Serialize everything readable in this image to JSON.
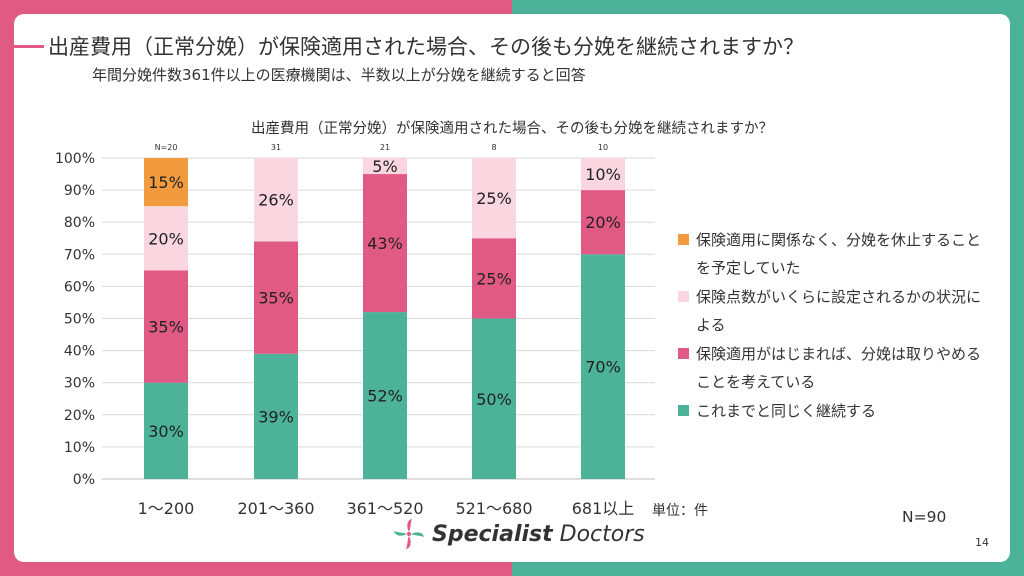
{
  "header": {
    "title": "出産費用（正常分娩）が保険適用された場合、その後も分娩を継続されますか？",
    "subtitle": "年間分娩件数361件以上の医療機関は、半数以上が分娩を継続すると回答"
  },
  "colors": {
    "accent_pink": "#e05a84",
    "accent_green": "#4cb399",
    "continue": "#4db398",
    "quit_if_applied": "#e05a84",
    "depends": "#f9d6e0",
    "quit_regardless": "#f19a3e"
  },
  "chart_data": {
    "type": "bar",
    "stacked": true,
    "title": "出産費用（正常分娩）が保険適用された場合、その後も分娩を継続されますか？",
    "categories": [
      "1～200",
      "201～360",
      "361～520",
      "521～680",
      "681以上"
    ],
    "n_labels": [
      "N=20",
      "31",
      "21",
      "8",
      "10"
    ],
    "y_ticks": [
      "0%",
      "10%",
      "20%",
      "30%",
      "40%",
      "50%",
      "60%",
      "70%",
      "80%",
      "90%",
      "100%"
    ],
    "ylim": [
      0,
      100
    ],
    "grid": true,
    "legend_position": "right",
    "series": [
      {
        "name": "これまでと同じく継続する",
        "color": "#4db398",
        "values": [
          30,
          39,
          52,
          50,
          70
        ]
      },
      {
        "name": "保険適用がはじまれば、分娩は取りやめることを考えている",
        "color": "#e05a84",
        "values": [
          35,
          35,
          43,
          25,
          20
        ]
      },
      {
        "name": "保険点数がいくらに設定されるかの状況による",
        "color": "#f9d6e0",
        "values": [
          20,
          26,
          5,
          25,
          10
        ]
      },
      {
        "name": "保険適用に関係なく、分娩を休止することを予定していた",
        "color": "#f19a3e",
        "values": [
          15,
          0,
          0,
          0,
          0
        ]
      }
    ]
  },
  "footer": {
    "unit": "単位：件",
    "n_total": "N=90",
    "page": "14",
    "logo_word1": "Specialist",
    "logo_word2": "Doctors"
  }
}
